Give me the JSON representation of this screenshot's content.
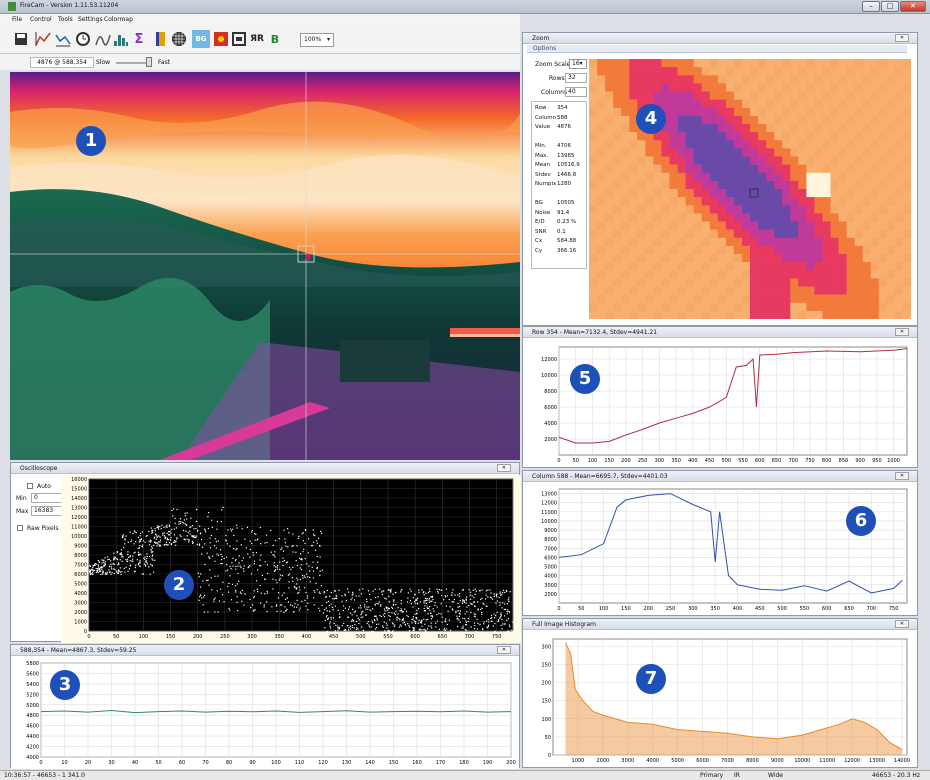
{
  "window": {
    "title": "FireCam - Version 1.11.53.11204",
    "controls": [
      "–",
      "□",
      "✕"
    ]
  },
  "menu": [
    "File",
    "Control",
    "Tools",
    "Settings",
    "Colormap"
  ],
  "toolbar": {
    "icons": [
      "save-icon",
      "line-profile-icon",
      "column-profile-icon",
      "clock-icon",
      "oscilloscope-icon",
      "histogram-icon",
      "sigma-icon",
      "bookmark-icon",
      "grid-icon",
      "bg-icon",
      "target-icon",
      "frame-icon",
      "rr-icon",
      "b-icon"
    ],
    "rr": "ЯR",
    "b": "B",
    "zoom": "100%",
    "zoom_options": [
      "100%"
    ]
  },
  "options": {
    "coords": "4876 @ 588,354",
    "slow": "Slow",
    "fast": "Fast"
  },
  "markers": [
    "1",
    "2",
    "3",
    "4",
    "5",
    "6",
    "7"
  ],
  "osc": {
    "title": "Oscilloscope",
    "auto": "Auto",
    "min_label": "Min",
    "min": "0",
    "max_label": "Max",
    "max": "16383",
    "raw": "Raw Pixels"
  },
  "pixel": {
    "title": "588,354 - Mean=4867.3, Stdev=59.25"
  },
  "zoom": {
    "title": "Zoom",
    "options": "Options",
    "scale_label": "Zoom Scale",
    "scale": "16",
    "rows_label": "Rows",
    "rows": "32",
    "cols_label": "Columns",
    "cols": "40",
    "stats": [
      [
        "Row",
        "354"
      ],
      [
        "Column",
        "588"
      ],
      [
        "Value",
        "4876"
      ],
      [
        "",
        ""
      ],
      [
        "Min.",
        "4706"
      ],
      [
        "Max.",
        "13985"
      ],
      [
        "Mean",
        "10516.9"
      ],
      [
        "Stdev",
        "1466.8"
      ],
      [
        "Numpix",
        "1280"
      ],
      [
        "",
        ""
      ],
      [
        "BG",
        "10505"
      ],
      [
        "Noise",
        "91.4"
      ],
      [
        "E/D",
        "0.23 %"
      ],
      [
        "SNR",
        "0.1"
      ],
      [
        "Cx",
        "584.88"
      ],
      [
        "Cy",
        "366.16"
      ]
    ]
  },
  "row": {
    "title": "Row 354 - Mean=7132.4, Stdev=4941.21"
  },
  "col": {
    "title": "Column 588 - Mean=6695.7, Stdev=4401.03"
  },
  "hist": {
    "title": "Full Image Histogram"
  },
  "status": {
    "time": "10:36:57 - 46653 - 1 341.0",
    "primary": "Primary",
    "ir": "IR",
    "wide": "Wide",
    "right": "46653 - 20.3 Hz"
  },
  "chart_data": [
    {
      "type": "scatter",
      "title": "",
      "xlim": [
        0,
        780
      ],
      "ylim": [
        0,
        16000
      ],
      "x_ticks": [
        0,
        50,
        100,
        150,
        200,
        250,
        300,
        350,
        400,
        450,
        500,
        550,
        600,
        650,
        700,
        750
      ],
      "y_ticks": [
        0,
        1000,
        2000,
        3000,
        4000,
        5000,
        6000,
        7000,
        8000,
        9000,
        10000,
        11000,
        12000,
        13000,
        14000,
        15000,
        16000
      ]
    },
    {
      "type": "line",
      "title": "",
      "xlim": [
        0,
        200
      ],
      "ylim": [
        4000,
        5800
      ],
      "x_ticks": [
        0,
        10,
        20,
        30,
        40,
        50,
        60,
        70,
        80,
        90,
        100,
        110,
        120,
        130,
        140,
        150,
        160,
        170,
        180,
        190,
        200
      ],
      "y_ticks": [
        4000,
        4200,
        4400,
        4600,
        4800,
        5000,
        5200,
        5400,
        5600,
        5800
      ],
      "series": [
        {
          "color": "#2e8b57",
          "x": [
            0,
            10,
            20,
            30,
            40,
            50,
            60,
            70,
            80,
            90,
            100,
            110,
            120,
            130,
            140,
            150,
            160,
            170,
            180,
            190,
            200
          ],
          "values": [
            4870,
            4880,
            4860,
            4890,
            4850,
            4870,
            4880,
            4860,
            4875,
            4865,
            4880,
            4855,
            4870,
            4885,
            4860,
            4870,
            4875,
            4865,
            4880,
            4860,
            4870
          ]
        }
      ]
    },
    {
      "type": "line",
      "title": "",
      "xlim": [
        0,
        1040
      ],
      "ylim": [
        0,
        13500
      ],
      "x_ticks": [
        0,
        50,
        100,
        150,
        200,
        250,
        300,
        350,
        400,
        450,
        500,
        550,
        600,
        650,
        700,
        750,
        800,
        850,
        900,
        950,
        1000
      ],
      "y_ticks": [
        2000,
        4000,
        6000,
        8000,
        10000,
        12000
      ],
      "series": [
        {
          "color": "#b03040",
          "x": [
            0,
            50,
            100,
            150,
            200,
            250,
            300,
            350,
            400,
            450,
            500,
            530,
            560,
            580,
            590,
            600,
            650,
            700,
            800,
            900,
            1000,
            1040
          ],
          "values": [
            2200,
            1500,
            1500,
            1700,
            2500,
            3200,
            4000,
            4600,
            5200,
            6000,
            7200,
            11000,
            11200,
            12000,
            6000,
            12500,
            12600,
            12800,
            13000,
            12900,
            13100,
            13300
          ]
        }
      ]
    },
    {
      "type": "line",
      "title": "",
      "xlim": [
        0,
        780
      ],
      "ylim": [
        1000,
        13500
      ],
      "x_ticks": [
        0,
        50,
        100,
        150,
        200,
        250,
        300,
        350,
        400,
        450,
        500,
        550,
        600,
        650,
        700,
        750
      ],
      "y_ticks": [
        2000,
        3000,
        4000,
        5000,
        6000,
        7000,
        8000,
        9000,
        10000,
        11000,
        12000,
        13000
      ],
      "series": [
        {
          "color": "#3050b0",
          "x": [
            0,
            50,
            100,
            130,
            150,
            200,
            250,
            300,
            340,
            350,
            360,
            380,
            400,
            450,
            500,
            550,
            600,
            650,
            700,
            750,
            770
          ],
          "values": [
            6000,
            6300,
            7500,
            11500,
            12300,
            12800,
            13000,
            11800,
            11000,
            5500,
            11000,
            4000,
            3000,
            2500,
            2400,
            2900,
            2300,
            3400,
            2100,
            2600,
            3500
          ]
        }
      ]
    },
    {
      "type": "area",
      "title": "",
      "xlim": [
        0,
        14200
      ],
      "ylim": [
        0,
        320
      ],
      "x_ticks": [
        1000,
        2000,
        3000,
        4000,
        5000,
        6000,
        7000,
        8000,
        9000,
        10000,
        11000,
        12000,
        13000,
        14000
      ],
      "y_ticks": [
        0,
        50,
        100,
        150,
        200,
        250,
        300
      ],
      "series": [
        {
          "color": "#e98a2c",
          "x": [
            500,
            700,
            900,
            1200,
            1600,
            2000,
            3000,
            4000,
            5000,
            6000,
            7000,
            8000,
            9000,
            10000,
            11000,
            11500,
            12000,
            12500,
            13000,
            13500,
            14000
          ],
          "values": [
            310,
            280,
            180,
            150,
            120,
            110,
            90,
            85,
            70,
            65,
            60,
            50,
            45,
            55,
            75,
            85,
            100,
            90,
            70,
            35,
            15
          ]
        }
      ]
    }
  ]
}
